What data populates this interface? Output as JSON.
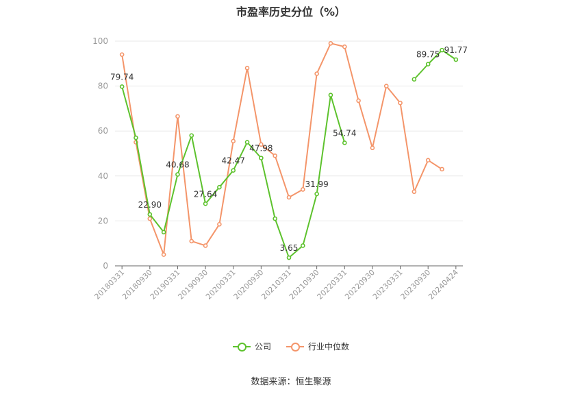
{
  "chart_data": {
    "type": "line",
    "title": "市盈率历史分位（%）",
    "x": [
      "20180331",
      "20180630",
      "20180930",
      "20181231",
      "20190331",
      "20190630",
      "20190930",
      "20191231",
      "20200331",
      "20200630",
      "20200930",
      "20201231",
      "20210331",
      "20210630",
      "20210930",
      "20211231",
      "20220331",
      "20220630",
      "20220930",
      "20221231",
      "20230331",
      "20230630",
      "20230930",
      "20231231",
      "20240424"
    ],
    "x_tick_labels": [
      "20180331",
      "20180930",
      "20190331",
      "20190930",
      "20200331",
      "20200930",
      "20210331",
      "20210930",
      "20220331",
      "20220930",
      "20230331",
      "20230930",
      "20240424"
    ],
    "ylim": [
      0,
      100
    ],
    "y_ticks": [
      0,
      20,
      40,
      60,
      80,
      100
    ],
    "grid": true,
    "legend_position": "bottom",
    "series": [
      {
        "name": "公司",
        "color": "#5dc22d",
        "values": [
          79.74,
          57,
          22.9,
          15,
          40.68,
          58,
          27.64,
          35,
          42.47,
          55,
          47.98,
          21,
          3.65,
          9,
          31.99,
          76,
          54.74,
          null,
          null,
          null,
          null,
          83,
          89.75,
          96,
          91.77
        ],
        "labels": [
          "79.74",
          null,
          "22.90",
          null,
          "40.68",
          null,
          "27.64",
          null,
          "42.47",
          null,
          "47.98",
          null,
          "3.65",
          null,
          "31.99",
          null,
          "54.74",
          null,
          null,
          null,
          null,
          null,
          "89.75",
          null,
          "91.77"
        ]
      },
      {
        "name": "行业中位数",
        "color": "#f4956a",
        "values": [
          94,
          55,
          21,
          5,
          66.5,
          11,
          9,
          18.5,
          55.5,
          88,
          54,
          49,
          30.5,
          34,
          85.5,
          99,
          97.5,
          73.5,
          52.5,
          80,
          72.5,
          33,
          47,
          43,
          null
        ]
      }
    ]
  },
  "source": "数据来源：恒生聚源"
}
